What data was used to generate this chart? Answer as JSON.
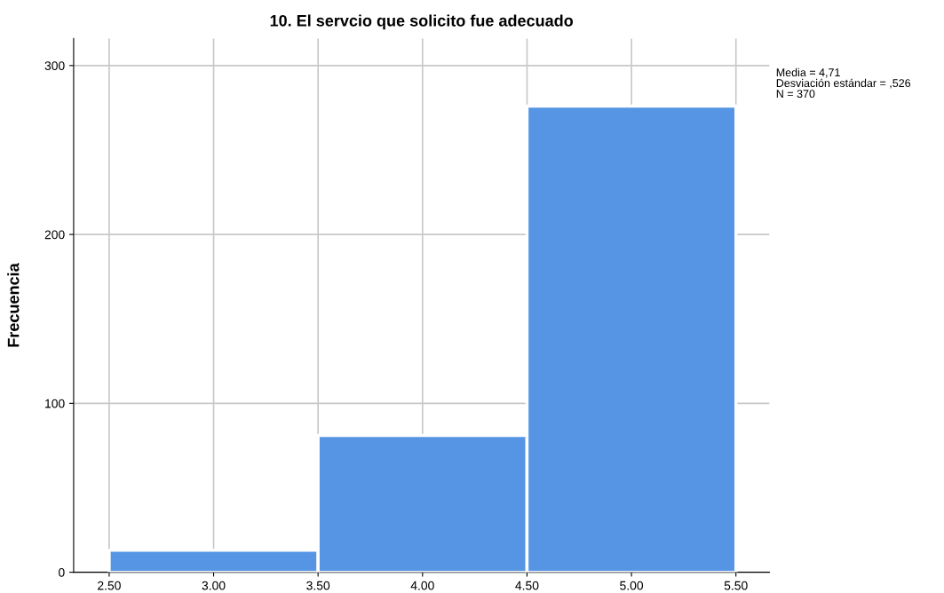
{
  "chart_data": {
    "type": "histogram",
    "title": "10. El servcio que solicito fue adecuado",
    "ylabel": "Frecuencia",
    "bins": [
      2.5,
      3.5,
      4.5,
      5.5
    ],
    "values": [
      13,
      81,
      276
    ],
    "color": "#5694e4",
    "xlim": [
      2.33,
      5.66
    ],
    "xticks": [
      {
        "value": 2.5,
        "label": "2.50"
      },
      {
        "value": 3.0,
        "label": "3.00"
      },
      {
        "value": 3.5,
        "label": "3.50"
      },
      {
        "value": 4.0,
        "label": "4.00"
      },
      {
        "value": 4.5,
        "label": "4.50"
      },
      {
        "value": 5.0,
        "label": "5.00"
      },
      {
        "value": 5.5,
        "label": "5.50"
      }
    ],
    "ylim": [
      0,
      316
    ],
    "yticks": [
      0,
      100,
      200,
      300
    ],
    "grid": true,
    "annotations": [
      "Media = 4,71",
      "Desviación estándar = ,526",
      "N = 370"
    ]
  }
}
